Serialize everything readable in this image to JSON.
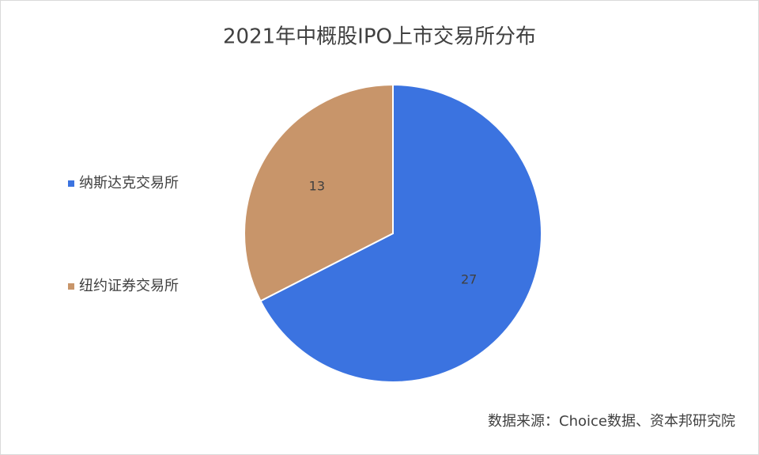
{
  "chart_data": {
    "type": "pie",
    "title": "2021年中概股IPO上市交易所分布",
    "categories": [
      "纳斯达克交易所",
      "纽约证券交易所"
    ],
    "values": [
      27,
      13
    ],
    "colors": [
      "#3b73e0",
      "#c8956a"
    ],
    "legend": "left",
    "source": "数据来源：Choice数据、资本邦研究院"
  }
}
